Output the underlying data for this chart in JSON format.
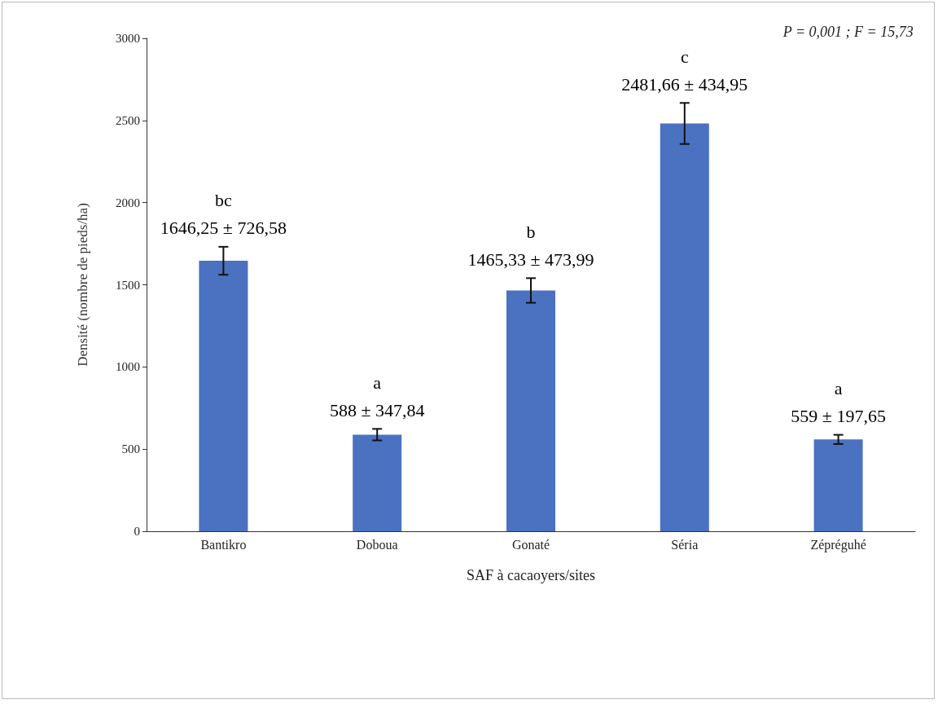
{
  "chart_data": {
    "type": "bar",
    "xlabel": "SAF à cacaoyers/sites",
    "ylabel": "Densité (nombre de pieds/ha)",
    "categories": [
      "Bantikro",
      "Doboua",
      "Gonaté",
      "Séria",
      "Zépréguhé"
    ],
    "values": [
      1646.25,
      588,
      1465.33,
      2481.66,
      559
    ],
    "errors": [
      85,
      35,
      75,
      125,
      28
    ],
    "value_labels": [
      "bc\n1646,25 ± 726,58",
      "a\n588 ± 347,84",
      "b\n1465,33 ± 473,99",
      "c\n2481,66 ± 434,95",
      "a\n559 ± 197,65"
    ],
    "color": "#4a72c0",
    "ylim": [
      0,
      3000
    ],
    "yticks": [
      0,
      500,
      1000,
      1500,
      2000,
      2500,
      3000
    ],
    "grid": false,
    "annotations": [
      "P = 0,001 ; F = 15,73"
    ]
  }
}
